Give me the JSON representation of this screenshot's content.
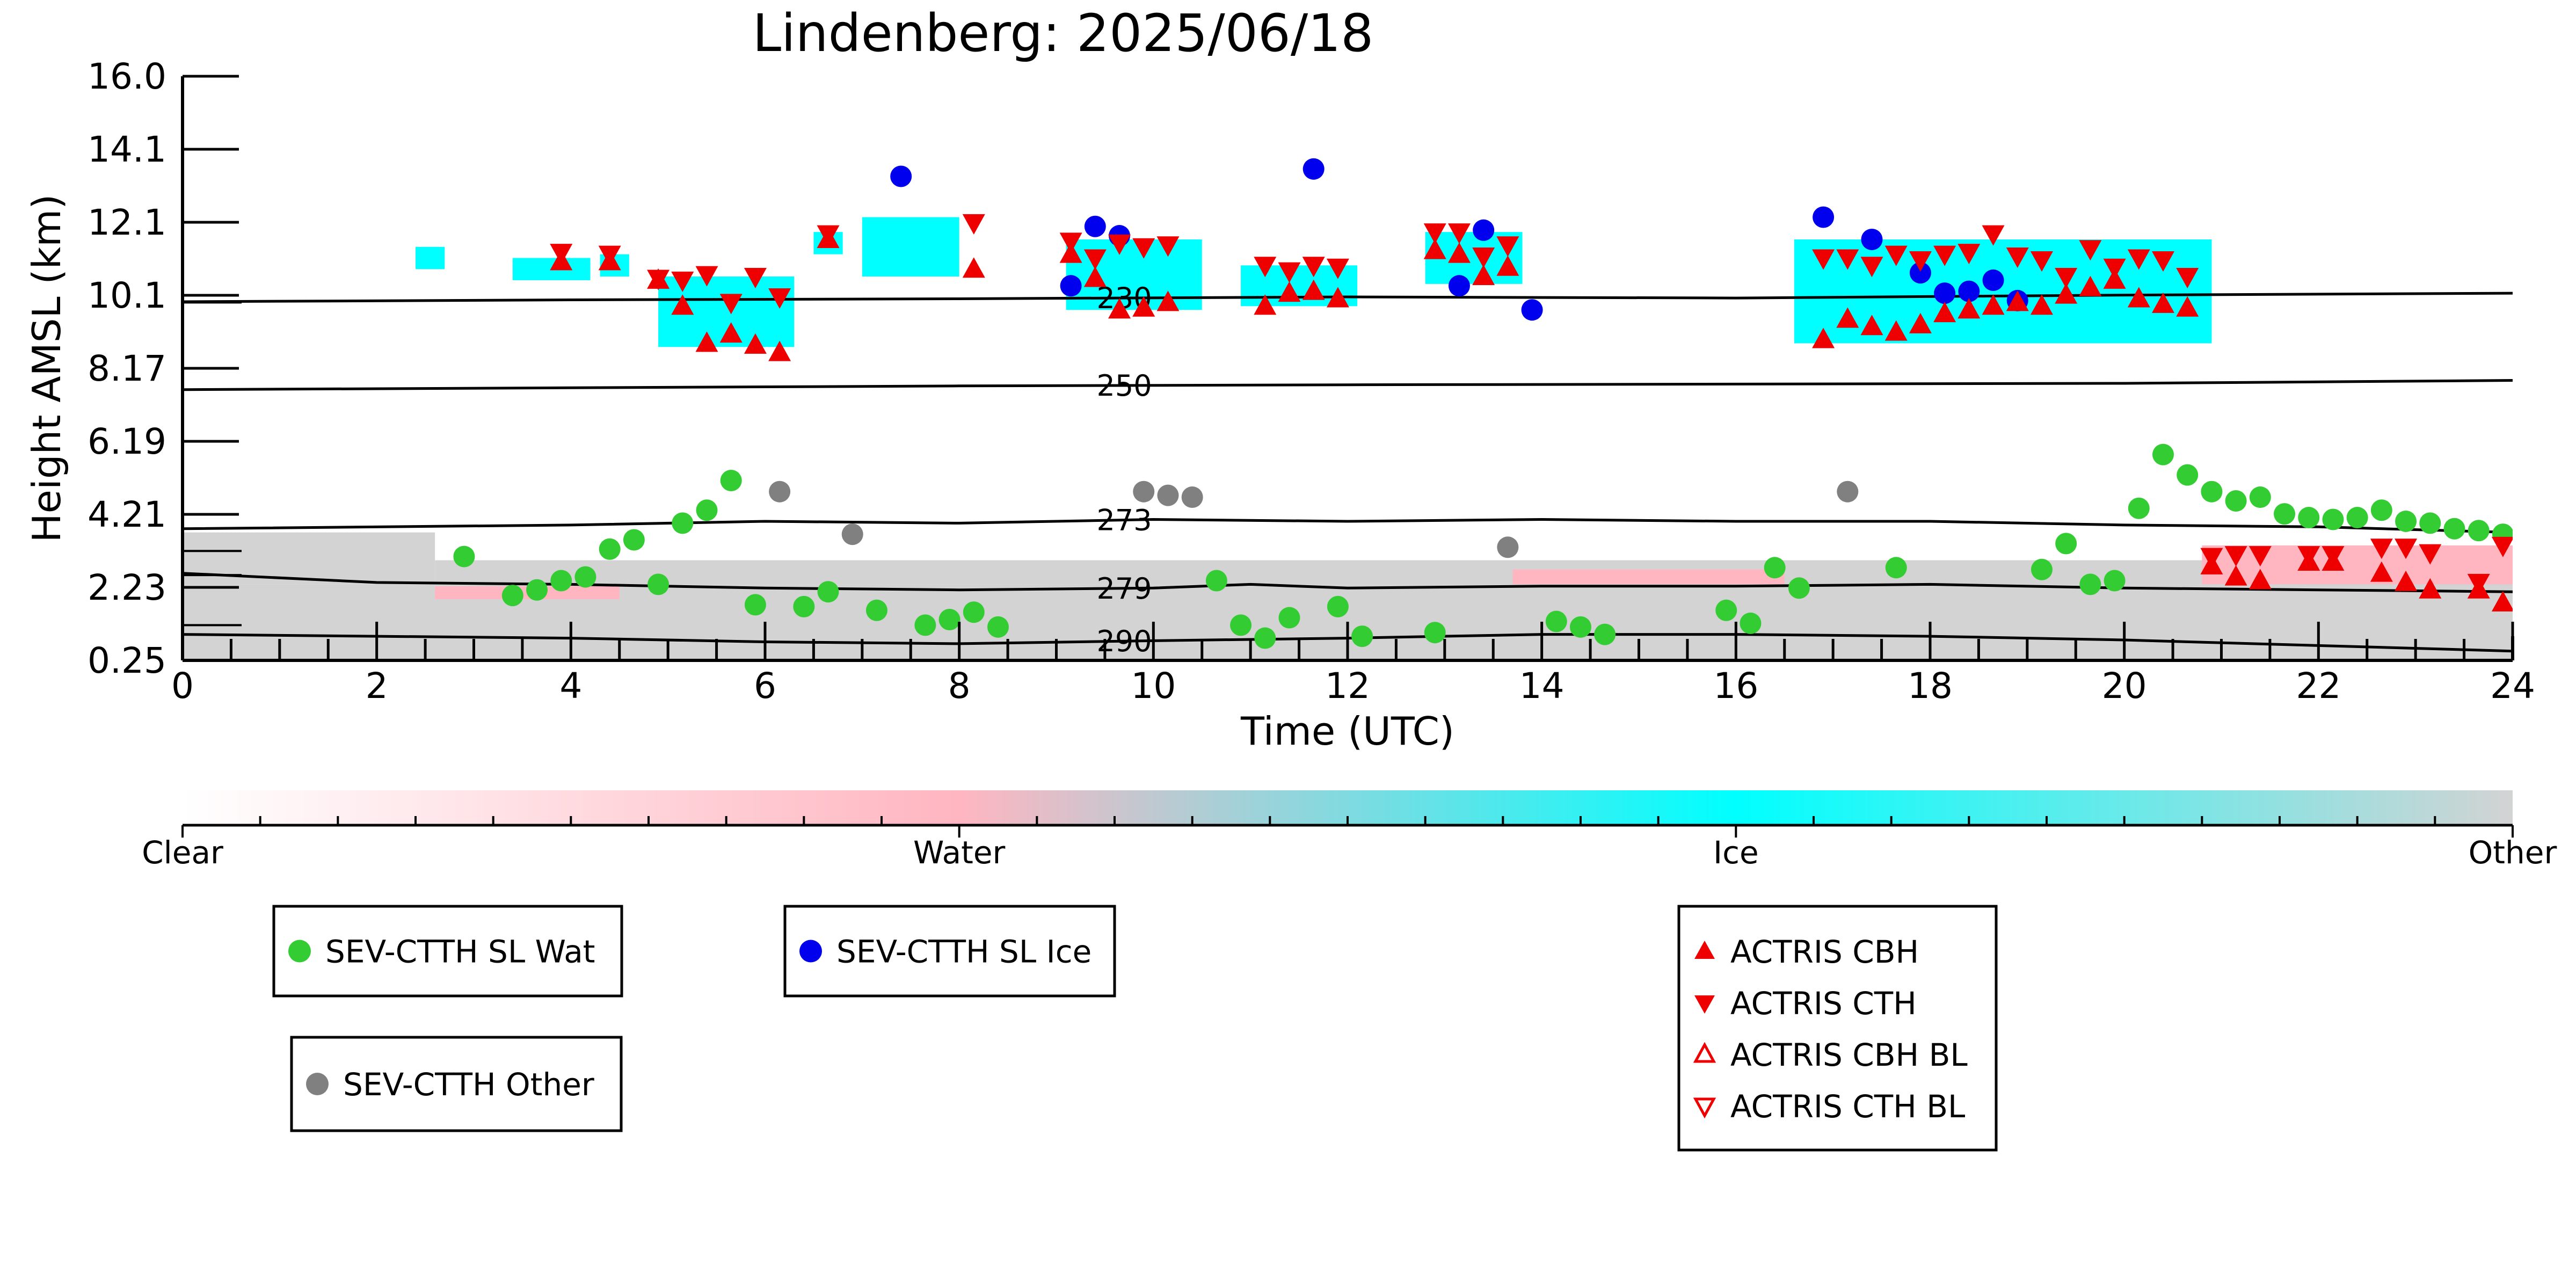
{
  "chart_data": {
    "type": "scatter",
    "title": "Lindenberg: 2025/06/18",
    "xlabel": "Time (UTC)",
    "ylabel": "Height AMSL (km)",
    "xlim": [
      0,
      24
    ],
    "ylim": [
      0.25,
      16.0
    ],
    "x_ticks": [
      "0",
      "2",
      "4",
      "6",
      "8",
      "10",
      "12",
      "14",
      "16",
      "18",
      "20",
      "22",
      "24"
    ],
    "y_ticks": [
      "0.25",
      "2.23",
      "4.21",
      "6.19",
      "8.17",
      "10.1",
      "12.1",
      "14.1",
      "16.0"
    ],
    "colorbar": {
      "labels": [
        "Clear",
        "Water",
        "Ice",
        "Other"
      ],
      "colors": [
        "#ffffff",
        "#ffb6c1",
        "#00ffff",
        "#d3d3d3"
      ]
    },
    "colors": {
      "water": "#33cc33",
      "ice": "#0000ee",
      "other": "#808080",
      "actris": "#ee0000",
      "cloud_ice": "#00ffff",
      "cloud_water": "#ffb6c1",
      "cloud_other": "#d3d3d3"
    },
    "isotherms": [
      {
        "label": "230",
        "label_x": 9.7,
        "points": [
          [
            0,
            9.92
          ],
          [
            4,
            9.97
          ],
          [
            8,
            10.0
          ],
          [
            12,
            10.05
          ],
          [
            16,
            10.02
          ],
          [
            20,
            10.1
          ],
          [
            24,
            10.15
          ]
        ]
      },
      {
        "label": "250",
        "label_x": 9.7,
        "points": [
          [
            0,
            7.55
          ],
          [
            4,
            7.6
          ],
          [
            8,
            7.65
          ],
          [
            12,
            7.68
          ],
          [
            16,
            7.7
          ],
          [
            20,
            7.72
          ],
          [
            24,
            7.8
          ]
        ]
      },
      {
        "label": "273",
        "label_x": 9.7,
        "points": [
          [
            0,
            3.8
          ],
          [
            4,
            3.9
          ],
          [
            6,
            4.0
          ],
          [
            8,
            3.95
          ],
          [
            10,
            4.05
          ],
          [
            12,
            4.0
          ],
          [
            14,
            4.05
          ],
          [
            16,
            4.0
          ],
          [
            18,
            4.0
          ],
          [
            20,
            3.9
          ],
          [
            22,
            3.85
          ],
          [
            24,
            3.7
          ]
        ]
      },
      {
        "label": "279",
        "label_x": 9.7,
        "points": [
          [
            0,
            2.6
          ],
          [
            2,
            2.35
          ],
          [
            4,
            2.3
          ],
          [
            6,
            2.2
          ],
          [
            8,
            2.15
          ],
          [
            10,
            2.2
          ],
          [
            11,
            2.3
          ],
          [
            12,
            2.2
          ],
          [
            14,
            2.25
          ],
          [
            16,
            2.25
          ],
          [
            18,
            2.3
          ],
          [
            20,
            2.2
          ],
          [
            22,
            2.15
          ],
          [
            24,
            2.1
          ]
        ]
      },
      {
        "label": "290",
        "label_x": 9.7,
        "points": [
          [
            0,
            0.95
          ],
          [
            2,
            0.9
          ],
          [
            4,
            0.85
          ],
          [
            6,
            0.75
          ],
          [
            8,
            0.7
          ],
          [
            10,
            0.78
          ],
          [
            12,
            0.85
          ],
          [
            14,
            0.95
          ],
          [
            16,
            0.95
          ],
          [
            18,
            0.9
          ],
          [
            20,
            0.8
          ],
          [
            22,
            0.65
          ],
          [
            24,
            0.5
          ]
        ]
      }
    ],
    "cloud_regions": [
      {
        "class": "ice",
        "x0": 2.4,
        "x1": 2.7,
        "y0": 10.8,
        "y1": 11.4
      },
      {
        "class": "ice",
        "x0": 3.4,
        "x1": 4.2,
        "y0": 10.5,
        "y1": 11.1
      },
      {
        "class": "ice",
        "x0": 4.3,
        "x1": 4.6,
        "y0": 10.6,
        "y1": 11.2
      },
      {
        "class": "ice",
        "x0": 4.9,
        "x1": 6.3,
        "y0": 8.7,
        "y1": 10.6
      },
      {
        "class": "ice",
        "x0": 6.5,
        "x1": 6.8,
        "y0": 11.2,
        "y1": 11.8
      },
      {
        "class": "ice",
        "x0": 7.0,
        "x1": 8.0,
        "y0": 10.6,
        "y1": 12.2
      },
      {
        "class": "ice",
        "x0": 9.1,
        "x1": 10.5,
        "y0": 9.7,
        "y1": 11.6
      },
      {
        "class": "ice",
        "x0": 10.9,
        "x1": 12.1,
        "y0": 9.8,
        "y1": 10.9
      },
      {
        "class": "ice",
        "x0": 12.8,
        "x1": 13.8,
        "y0": 10.4,
        "y1": 11.8
      },
      {
        "class": "ice",
        "x0": 16.6,
        "x1": 20.9,
        "y0": 8.8,
        "y1": 11.6
      },
      {
        "class": "other",
        "x0": 0.0,
        "x1": 24.0,
        "y0": 0.25,
        "y1": 2.3
      },
      {
        "class": "other",
        "x0": 0.0,
        "x1": 2.6,
        "y0": 2.3,
        "y1": 3.7
      },
      {
        "class": "other",
        "x0": 2.6,
        "x1": 24.0,
        "y0": 2.3,
        "y1": 2.95
      },
      {
        "class": "water",
        "x0": 2.6,
        "x1": 4.5,
        "y0": 1.9,
        "y1": 2.25
      },
      {
        "class": "water",
        "x0": 13.7,
        "x1": 16.5,
        "y0": 2.3,
        "y1": 2.7
      },
      {
        "class": "water",
        "x0": 20.8,
        "x1": 24.0,
        "y0": 2.3,
        "y1": 3.35
      }
    ],
    "series": [
      {
        "name": "SEV-CTTH SL Wat",
        "marker": "circle",
        "color": "#33cc33",
        "x": [
          2.9,
          3.4,
          3.65,
          3.9,
          4.15,
          4.4,
          4.65,
          4.9,
          5.15,
          5.4,
          5.65,
          5.9,
          6.4,
          6.65,
          7.15,
          7.65,
          7.9,
          8.15,
          8.4,
          10.65,
          10.9,
          11.15,
          11.4,
          11.9,
          12.15,
          12.9,
          14.15,
          14.4,
          14.65,
          15.9,
          16.15,
          16.4,
          16.65,
          17.65,
          19.15,
          19.4,
          19.65,
          19.9,
          20.15,
          20.4,
          20.65,
          20.9,
          21.15,
          21.4,
          21.65,
          21.9,
          22.15,
          22.4,
          22.65,
          22.9,
          23.15,
          23.4,
          23.65,
          23.9
        ],
        "y": [
          3.05,
          2.0,
          2.15,
          2.4,
          2.5,
          3.25,
          3.5,
          2.3,
          3.95,
          4.3,
          5.1,
          1.75,
          1.7,
          2.1,
          1.6,
          1.2,
          1.35,
          1.55,
          1.15,
          2.4,
          1.2,
          0.85,
          1.4,
          1.7,
          0.9,
          1.0,
          1.3,
          1.15,
          0.95,
          1.6,
          1.25,
          2.75,
          2.2,
          2.75,
          2.7,
          3.4,
          2.3,
          2.4,
          4.35,
          5.8,
          5.25,
          4.8,
          4.55,
          4.65,
          4.2,
          4.1,
          4.05,
          4.1,
          4.3,
          4.0,
          3.95,
          3.8,
          3.75,
          3.65
        ]
      },
      {
        "name": "SEV-CTTH SL Ice",
        "marker": "circle",
        "color": "#0000ee",
        "x": [
          7.4,
          9.15,
          9.4,
          9.65,
          11.65,
          13.15,
          13.4,
          13.9,
          16.9,
          17.4,
          17.9,
          18.15,
          18.4,
          18.65,
          18.9
        ],
        "y": [
          13.3,
          10.35,
          11.95,
          11.7,
          13.5,
          10.35,
          11.85,
          9.7,
          12.2,
          11.6,
          10.7,
          10.15,
          10.2,
          10.5,
          9.95
        ]
      },
      {
        "name": "SEV-CTTH Other",
        "marker": "circle",
        "color": "#808080",
        "x": [
          6.15,
          6.9,
          9.9,
          10.15,
          10.4,
          13.65,
          17.15
        ],
        "y": [
          4.8,
          3.65,
          4.8,
          4.7,
          4.65,
          3.3,
          4.8
        ]
      },
      {
        "name": "ACTRIS CBH",
        "marker": "triangle-up",
        "color": "#ee0000",
        "x": [
          3.9,
          4.4,
          4.9,
          5.15,
          5.4,
          5.65,
          5.9,
          6.15,
          6.65,
          8.15,
          9.15,
          9.4,
          9.65,
          9.9,
          10.15,
          11.15,
          11.4,
          11.65,
          11.9,
          12.9,
          13.15,
          13.4,
          13.65,
          16.9,
          17.15,
          17.4,
          17.65,
          17.9,
          18.15,
          18.4,
          18.65,
          18.9,
          19.15,
          19.4,
          19.65,
          19.9,
          20.15,
          20.4,
          20.65,
          20.9,
          21.15,
          21.4,
          21.9,
          22.15,
          22.65,
          22.9,
          23.15,
          23.65,
          23.9
        ],
        "y": [
          11.0,
          11.0,
          10.5,
          9.8,
          8.8,
          9.05,
          8.75,
          8.55,
          11.6,
          10.8,
          11.2,
          10.55,
          9.7,
          9.75,
          9.9,
          9.8,
          10.15,
          10.2,
          10.0,
          11.3,
          11.2,
          10.6,
          10.85,
          8.9,
          9.45,
          9.25,
          9.1,
          9.3,
          9.6,
          9.7,
          9.8,
          9.9,
          9.8,
          10.1,
          10.3,
          10.5,
          10.0,
          9.85,
          9.75,
          2.8,
          2.5,
          2.4,
          2.9,
          2.9,
          2.6,
          2.35,
          2.15,
          2.15,
          1.8
        ]
      },
      {
        "name": "ACTRIS CTH",
        "marker": "triangle-down",
        "color": "#ee0000",
        "x": [
          3.9,
          4.4,
          4.9,
          5.15,
          5.4,
          5.65,
          5.9,
          6.15,
          6.65,
          8.15,
          9.15,
          9.4,
          9.65,
          9.9,
          10.15,
          11.15,
          11.4,
          11.65,
          11.9,
          12.9,
          13.15,
          13.4,
          13.65,
          16.9,
          17.15,
          17.4,
          17.65,
          17.9,
          18.15,
          18.4,
          18.65,
          18.9,
          19.15,
          19.4,
          19.65,
          19.9,
          20.15,
          20.4,
          20.65,
          20.9,
          21.15,
          21.4,
          21.9,
          22.15,
          22.65,
          22.9,
          23.15,
          23.65,
          23.9
        ],
        "y": [
          11.25,
          11.2,
          10.55,
          10.5,
          10.65,
          9.9,
          10.6,
          10.05,
          11.75,
          12.05,
          11.55,
          11.1,
          11.5,
          11.4,
          11.45,
          10.9,
          10.75,
          10.9,
          10.85,
          11.8,
          11.8,
          11.15,
          11.45,
          11.1,
          11.1,
          10.9,
          11.2,
          11.05,
          11.2,
          11.25,
          11.75,
          11.15,
          11.05,
          10.6,
          11.35,
          10.85,
          11.1,
          11.05,
          10.6,
          3.05,
          3.1,
          3.1,
          3.1,
          3.1,
          3.3,
          3.3,
          3.15,
          2.35,
          3.35
        ]
      },
      {
        "name": "ACTRIS CBH BL",
        "marker": "triangle-up-open",
        "color": "#ee0000",
        "x": [],
        "y": []
      },
      {
        "name": "ACTRIS CTH BL",
        "marker": "triangle-down-open",
        "color": "#ee0000",
        "x": [],
        "y": []
      }
    ],
    "legends": [
      {
        "entries": [
          "SEV-CTTH SL Wat"
        ]
      },
      {
        "entries": [
          "SEV-CTTH SL Ice"
        ]
      },
      {
        "entries": [
          "SEV-CTTH Other"
        ]
      },
      {
        "entries": [
          "ACTRIS CBH",
          "ACTRIS CTH",
          "ACTRIS CBH BL",
          "ACTRIS CTH BL"
        ]
      }
    ],
    "grid": false
  }
}
